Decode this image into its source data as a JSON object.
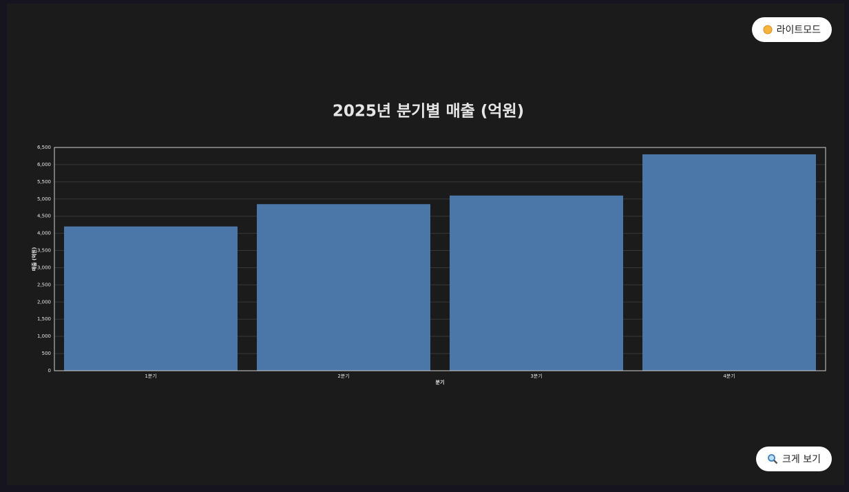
{
  "buttons": {
    "theme": "라이트모드",
    "zoom": "크게 보기"
  },
  "chart_data": {
    "type": "bar",
    "title": "2025년 분기별 매출 (억원)",
    "x_label": "분기",
    "y_label": "매출 (억원)",
    "categories": [
      "1분기",
      "2분기",
      "3분기",
      "4분기"
    ],
    "values": [
      4200,
      4850,
      5100,
      6300
    ],
    "color": "#4a77a8",
    "ylim": [
      0,
      6500
    ],
    "yticks": [
      0,
      500,
      {
        "value": 1000,
        "label": "1,000"
      },
      {
        "value": 1500,
        "label": "1,500"
      },
      {
        "value": 2000,
        "label": "2,000"
      },
      {
        "value": 2500,
        "label": "2,500"
      },
      {
        "value": 3000,
        "label": "3,000"
      },
      {
        "value": 3500,
        "label": "3,500"
      },
      {
        "value": 4000,
        "label": "4,000"
      },
      {
        "value": 4500,
        "label": "4,500"
      },
      {
        "value": 5000,
        "label": "5,000"
      },
      {
        "value": 5500,
        "label": "5,500"
      },
      {
        "value": 6000,
        "label": "6,000"
      },
      {
        "value": 6500,
        "label": "6,500"
      }
    ],
    "grid": true
  }
}
